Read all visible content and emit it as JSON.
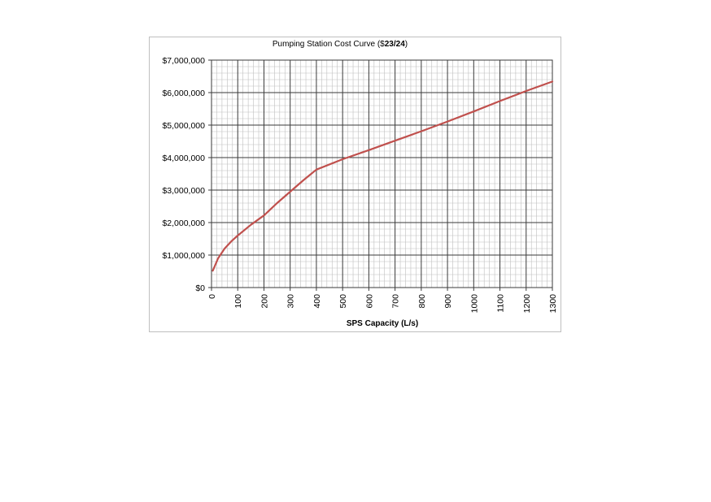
{
  "chart_data": {
    "type": "line",
    "title": "Pumping Station Cost Curve ($23/24)",
    "title_parts": [
      "Pumping Station Cost Curve ($",
      "23/24",
      ")"
    ],
    "xlabel": "SPS Capacity (L/s)",
    "ylabel": "",
    "xlim": [
      0,
      1300
    ],
    "ylim": [
      0,
      7000000
    ],
    "x_ticks": [
      "0",
      "100",
      "200",
      "300",
      "400",
      "500",
      "600",
      "700",
      "800",
      "900",
      "1000",
      "1100",
      "1200",
      "1300"
    ],
    "y_ticks": [
      "$0",
      "$1,000,000",
      "$2,000,000",
      "$3,000,000",
      "$4,000,000",
      "$5,000,000",
      "$6,000,000",
      "$7,000,000"
    ],
    "grid": "major and minor",
    "line_color": "#c0504d",
    "series": [
      {
        "values": [
          [
            5,
            520000
          ],
          [
            25,
            900000
          ],
          [
            50,
            1200000
          ],
          [
            75,
            1420000
          ],
          [
            100,
            1600000
          ],
          [
            150,
            1930000
          ],
          [
            200,
            2220000
          ],
          [
            250,
            2600000
          ],
          [
            300,
            2950000
          ],
          [
            350,
            3300000
          ],
          [
            400,
            3630000
          ],
          [
            500,
            3950000
          ],
          [
            600,
            4230000
          ],
          [
            700,
            4520000
          ],
          [
            800,
            4810000
          ],
          [
            900,
            5110000
          ],
          [
            1000,
            5420000
          ],
          [
            1100,
            5740000
          ],
          [
            1200,
            6050000
          ],
          [
            1300,
            6340000
          ]
        ]
      }
    ]
  }
}
